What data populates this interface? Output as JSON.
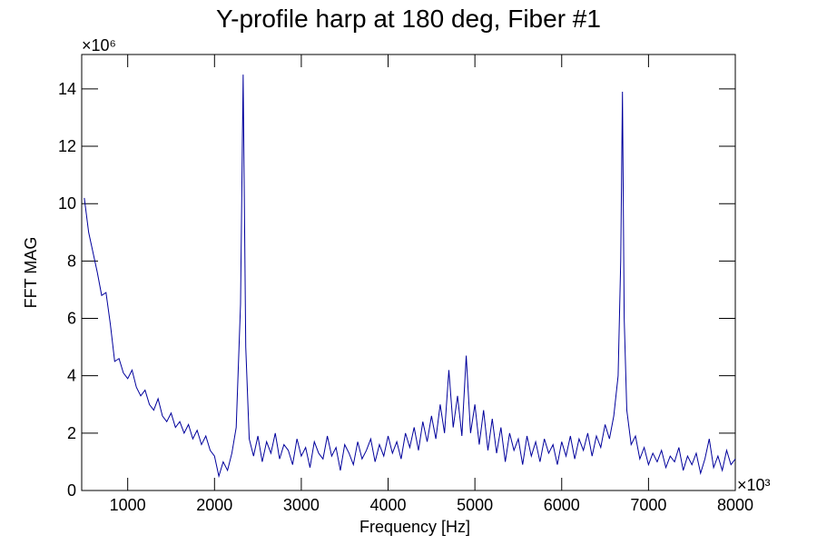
{
  "chart_data": {
    "type": "line",
    "title": "Y-profile harp at 180 deg, Fiber #1",
    "x_label": "Frequency [Hz]",
    "y_label": "FFT MAG",
    "x_multiplier": "×10³",
    "y_multiplier": "×10⁶",
    "color": "#00009c",
    "xlim": [
      470,
      8000
    ],
    "ylim": [
      0,
      15.2
    ],
    "xticks": [
      1000,
      2000,
      3000,
      4000,
      5000,
      6000,
      7000,
      8000
    ],
    "yticks": [
      0,
      2,
      4,
      6,
      8,
      10,
      12,
      14
    ],
    "x": [
      500,
      550,
      600,
      650,
      700,
      750,
      800,
      850,
      900,
      950,
      1000,
      1050,
      1100,
      1150,
      1200,
      1250,
      1300,
      1350,
      1400,
      1450,
      1500,
      1550,
      1600,
      1650,
      1700,
      1750,
      1800,
      1850,
      1900,
      1950,
      2000,
      2050,
      2100,
      2150,
      2200,
      2250,
      2300,
      2330,
      2360,
      2400,
      2450,
      2500,
      2550,
      2600,
      2650,
      2700,
      2750,
      2800,
      2850,
      2900,
      2950,
      3000,
      3050,
      3100,
      3150,
      3200,
      3250,
      3300,
      3350,
      3400,
      3450,
      3500,
      3550,
      3600,
      3650,
      3700,
      3750,
      3800,
      3850,
      3900,
      3950,
      4000,
      4050,
      4100,
      4150,
      4200,
      4250,
      4300,
      4350,
      4400,
      4450,
      4500,
      4550,
      4600,
      4650,
      4700,
      4750,
      4800,
      4850,
      4900,
      4950,
      5000,
      5050,
      5100,
      5150,
      5200,
      5250,
      5300,
      5350,
      5400,
      5450,
      5500,
      5550,
      5600,
      5650,
      5700,
      5750,
      5800,
      5850,
      5900,
      5950,
      6000,
      6050,
      6100,
      6150,
      6200,
      6250,
      6300,
      6350,
      6400,
      6450,
      6500,
      6550,
      6600,
      6650,
      6680,
      6700,
      6720,
      6750,
      6800,
      6850,
      6900,
      6950,
      7000,
      7050,
      7100,
      7150,
      7200,
      7250,
      7300,
      7350,
      7400,
      7450,
      7500,
      7550,
      7600,
      7650,
      7700,
      7750,
      7800,
      7850,
      7900,
      7950,
      8000
    ],
    "values": [
      10.2,
      9.0,
      8.3,
      7.6,
      6.8,
      6.9,
      5.8,
      4.5,
      4.6,
      4.1,
      3.9,
      4.2,
      3.6,
      3.3,
      3.5,
      3.0,
      2.8,
      3.2,
      2.6,
      2.4,
      2.7,
      2.2,
      2.4,
      2.0,
      2.3,
      1.8,
      2.1,
      1.6,
      1.9,
      1.4,
      1.2,
      0.5,
      1.0,
      0.7,
      1.3,
      2.2,
      6.5,
      14.5,
      5.0,
      1.8,
      1.2,
      1.9,
      1.0,
      1.7,
      1.3,
      2.0,
      1.1,
      1.6,
      1.4,
      0.9,
      1.8,
      1.2,
      1.5,
      0.8,
      1.7,
      1.3,
      1.1,
      1.9,
      1.2,
      1.5,
      0.7,
      1.6,
      1.3,
      0.9,
      1.7,
      1.1,
      1.4,
      1.8,
      1.0,
      1.6,
      1.2,
      1.9,
      1.3,
      1.7,
      1.1,
      2.0,
      1.5,
      2.2,
      1.4,
      2.4,
      1.7,
      2.6,
      1.8,
      3.0,
      2.0,
      4.2,
      2.2,
      3.3,
      1.9,
      4.7,
      2.0,
      3.0,
      1.6,
      2.8,
      1.4,
      2.5,
      1.3,
      2.2,
      1.0,
      2.0,
      1.4,
      1.8,
      0.9,
      1.9,
      1.2,
      1.7,
      1.0,
      1.8,
      1.3,
      1.6,
      0.9,
      1.7,
      1.2,
      1.9,
      1.1,
      1.8,
      1.4,
      2.0,
      1.2,
      1.9,
      1.5,
      2.3,
      1.8,
      2.6,
      4.0,
      8.0,
      13.9,
      6.0,
      2.8,
      1.6,
      1.9,
      1.1,
      1.5,
      0.9,
      1.3,
      1.0,
      1.4,
      0.8,
      1.2,
      1.0,
      1.5,
      0.7,
      1.2,
      0.9,
      1.3,
      0.6,
      1.1,
      1.8,
      0.8,
      1.2,
      0.7,
      1.4,
      0.9,
      1.1
    ]
  }
}
